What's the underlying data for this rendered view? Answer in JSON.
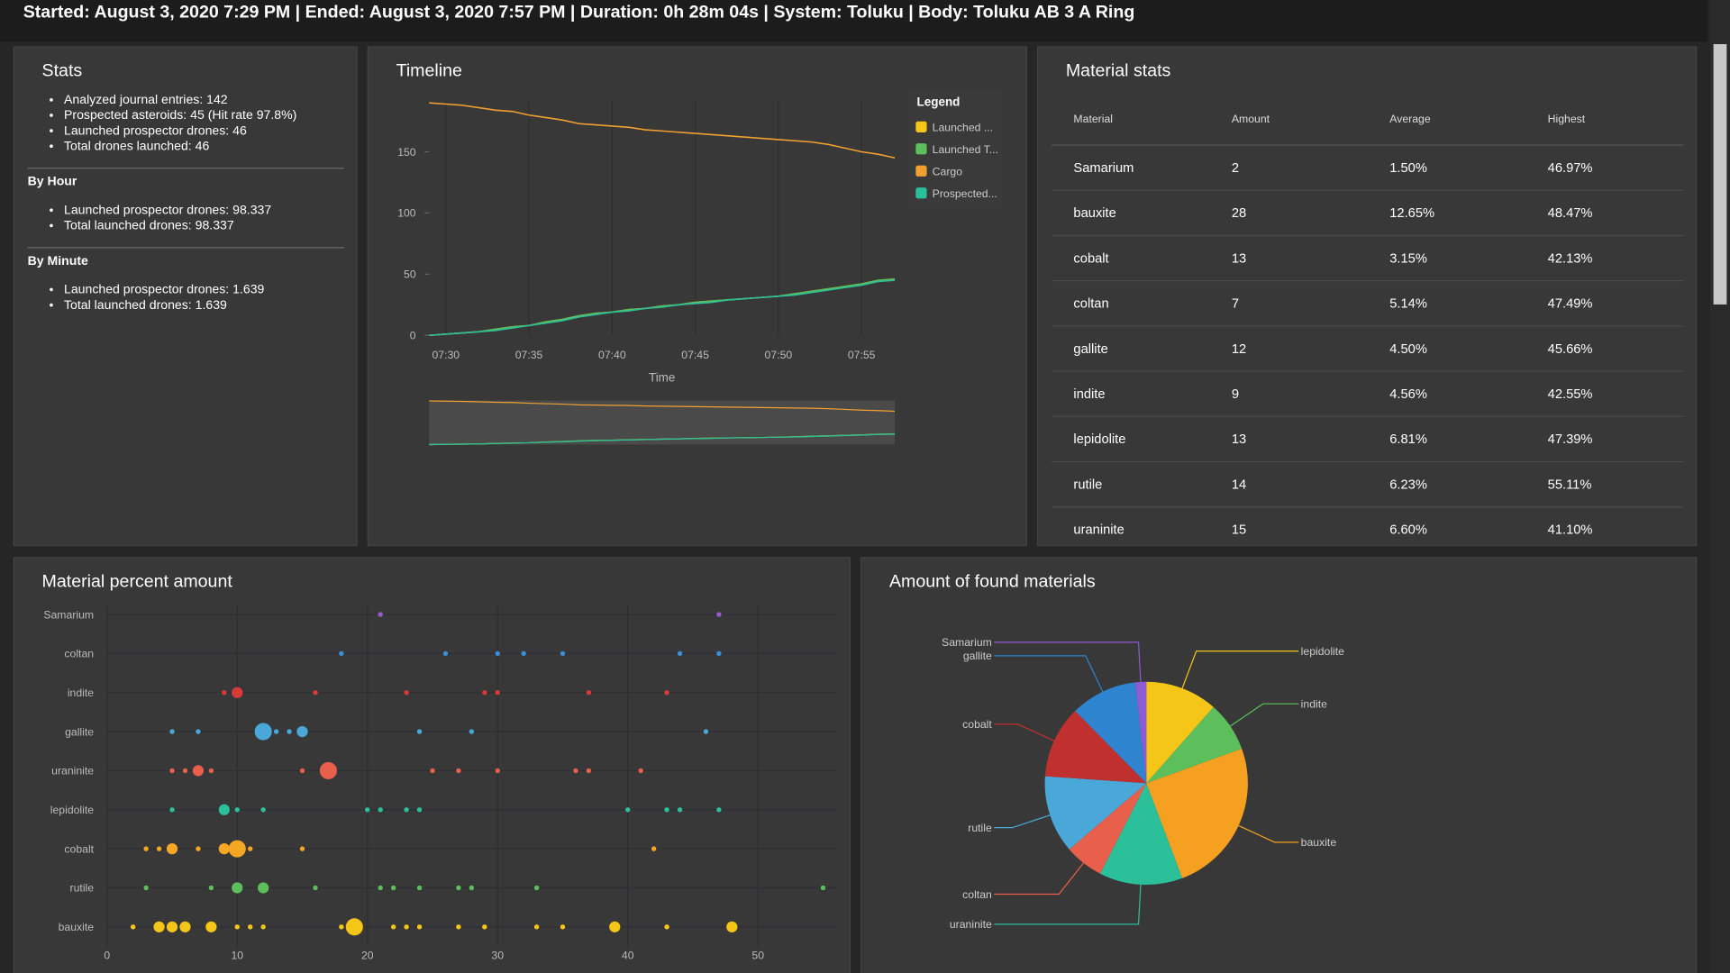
{
  "header": {
    "text": "Started: August 3, 2020 7:29 PM | Ended: August 3, 2020 7:57 PM | Duration: 0h 28m 04s | System: Toluku | Body: Toluku AB 3 A Ring"
  },
  "stats": {
    "title": "Stats",
    "items": [
      "Analyzed journal entries: 142",
      "Prospected asteroids: 45 (Hit rate 97.8%)",
      "Launched prospector drones: 46",
      "Total drones launched: 46"
    ],
    "by_hour": {
      "title": "By Hour",
      "items": [
        "Launched prospector drones: 98.337",
        "Total launched drones: 98.337"
      ]
    },
    "by_minute": {
      "title": "By Minute",
      "items": [
        "Launched prospector drones: 1.639",
        "Total launched drones: 1.639"
      ]
    }
  },
  "material_stats": {
    "title": "Material stats",
    "table": {
      "columns": [
        "Material",
        "Amount",
        "Average",
        "Highest"
      ],
      "rows": [
        [
          "Samarium",
          "2",
          "1.50%",
          "46.97%"
        ],
        [
          "bauxite",
          "28",
          "12.65%",
          "48.47%"
        ],
        [
          "cobalt",
          "13",
          "3.15%",
          "42.13%"
        ],
        [
          "coltan",
          "7",
          "5.14%",
          "47.49%"
        ],
        [
          "gallite",
          "12",
          "4.50%",
          "45.66%"
        ],
        [
          "indite",
          "9",
          "4.56%",
          "42.55%"
        ],
        [
          "lepidolite",
          "13",
          "6.81%",
          "47.39%"
        ],
        [
          "rutile",
          "14",
          "6.23%",
          "55.11%"
        ],
        [
          "uraninite",
          "15",
          "6.60%",
          "41.10%"
        ]
      ]
    }
  },
  "chart_data": [
    {
      "type": "line",
      "title": "Timeline",
      "x_label": "Time",
      "legend_title": "Legend",
      "grid": "x",
      "navigator": true,
      "x": [
        "07:29",
        "07:30",
        "07:31",
        "07:32",
        "07:33",
        "07:34",
        "07:35",
        "07:36",
        "07:37",
        "07:38",
        "07:39",
        "07:40",
        "07:41",
        "07:42",
        "07:43",
        "07:44",
        "07:45",
        "07:46",
        "07:47",
        "07:48",
        "07:49",
        "07:50",
        "07:51",
        "07:52",
        "07:53",
        "07:54",
        "07:55",
        "07:56",
        "07:57"
      ],
      "xlim": [
        "07:29",
        "07:57"
      ],
      "xticks": [
        "07:30",
        "07:35",
        "07:40",
        "07:45",
        "07:50",
        "07:55"
      ],
      "ylim": [
        0,
        192
      ],
      "yticks": [
        0,
        50,
        100,
        150
      ],
      "series": [
        {
          "name": "Launched ...",
          "color": "#f5c518",
          "values": [
            0,
            1,
            2,
            3,
            5,
            7,
            8,
            11,
            13,
            16,
            18,
            19,
            21,
            22,
            24,
            25,
            27,
            28,
            29,
            30,
            31,
            32,
            34,
            36,
            38,
            40,
            42,
            45,
            46
          ]
        },
        {
          "name": "Launched T...",
          "color": "#5cbf5c",
          "values": [
            0,
            1,
            2,
            3,
            5,
            7,
            8,
            11,
            13,
            16,
            18,
            19,
            21,
            22,
            24,
            25,
            27,
            28,
            29,
            30,
            31,
            32,
            34,
            36,
            38,
            40,
            42,
            45,
            46
          ]
        },
        {
          "name": "Cargo",
          "color": "#f0a030",
          "values": [
            190,
            189,
            188,
            186,
            184,
            183,
            180,
            178,
            176,
            173,
            172,
            171,
            170,
            168,
            167,
            166,
            165,
            164,
            163,
            162,
            161,
            160,
            159,
            158,
            156,
            153,
            150,
            148,
            145
          ]
        },
        {
          "name": "Prospected...",
          "color": "#2bbf9a",
          "values": [
            0,
            1,
            2,
            3,
            4,
            6,
            8,
            10,
            12,
            15,
            17,
            19,
            20,
            22,
            23,
            25,
            26,
            27,
            29,
            30,
            31,
            32,
            33,
            35,
            37,
            39,
            41,
            44,
            45
          ]
        }
      ]
    },
    {
      "type": "scatter",
      "title": "Material percent amount",
      "grid": true,
      "xlim": [
        0,
        55
      ],
      "xticks": [
        0,
        10,
        20,
        30,
        40,
        50
      ],
      "series": [
        {
          "name": "Samarium",
          "color": "#9b59d0",
          "x": [
            21,
            47
          ],
          "sizes": [
            1,
            1
          ]
        },
        {
          "name": "coltan",
          "color": "#3a8fd9",
          "x": [
            18,
            26,
            30,
            32,
            35,
            44,
            47
          ],
          "sizes": [
            1,
            1,
            1,
            1,
            1,
            1,
            1
          ]
        },
        {
          "name": "indite",
          "color": "#d83a3a",
          "x": [
            9,
            10,
            16,
            23,
            29,
            30,
            37,
            43
          ],
          "sizes": [
            1,
            2,
            1,
            1,
            1,
            1,
            1,
            1
          ]
        },
        {
          "name": "gallite",
          "color": "#4aa8d8",
          "x": [
            5,
            7,
            12,
            13,
            14,
            15,
            24,
            28,
            46
          ],
          "sizes": [
            1,
            1,
            3,
            1,
            1,
            2,
            1,
            1,
            1
          ]
        },
        {
          "name": "uraninite",
          "color": "#e8604c",
          "x": [
            5,
            6,
            7,
            8,
            15,
            17,
            25,
            27,
            30,
            36,
            37,
            41
          ],
          "sizes": [
            1,
            1,
            2,
            1,
            1,
            3,
            1,
            1,
            1,
            1,
            1,
            1
          ]
        },
        {
          "name": "lepidolite",
          "color": "#2bbf9a",
          "x": [
            5,
            9,
            10,
            12,
            20,
            21,
            23,
            24,
            40,
            43,
            44,
            47
          ],
          "sizes": [
            1,
            2,
            1,
            1,
            1,
            1,
            1,
            1,
            1,
            1,
            1,
            1
          ]
        },
        {
          "name": "cobalt",
          "color": "#f5a623",
          "x": [
            3,
            4,
            5,
            7,
            9,
            10,
            11,
            15,
            42
          ],
          "sizes": [
            1,
            1,
            2,
            1,
            2,
            3,
            1,
            1,
            1
          ]
        },
        {
          "name": "rutile",
          "color": "#5cbf5c",
          "x": [
            3,
            8,
            10,
            12,
            16,
            21,
            22,
            24,
            27,
            28,
            33,
            55
          ],
          "sizes": [
            1,
            1,
            2,
            2,
            1,
            1,
            1,
            1,
            1,
            1,
            1,
            1
          ]
        },
        {
          "name": "bauxite",
          "color": "#f5c518",
          "x": [
            2,
            4,
            5,
            6,
            8,
            10,
            11,
            12,
            18,
            19,
            22,
            23,
            24,
            27,
            29,
            33,
            35,
            39,
            43,
            48
          ],
          "sizes": [
            1,
            2,
            2,
            2,
            2,
            1,
            1,
            1,
            1,
            3,
            1,
            1,
            1,
            1,
            1,
            1,
            1,
            2,
            1,
            2
          ]
        }
      ]
    },
    {
      "type": "pie",
      "title": "Amount of found materials",
      "categories": [
        "lepidolite",
        "indite",
        "bauxite",
        "uraninite",
        "coltan",
        "rutile",
        "cobalt",
        "gallite",
        "Samarium"
      ],
      "values": [
        13,
        9,
        28,
        15,
        7,
        14,
        13,
        12,
        2
      ],
      "colors": [
        "#f5c518",
        "#5cbf5c",
        "#f5a020",
        "#2bbf9a",
        "#e8604c",
        "#4aa8d8",
        "#c0302e",
        "#2f84d0",
        "#8e5bd0"
      ]
    }
  ]
}
